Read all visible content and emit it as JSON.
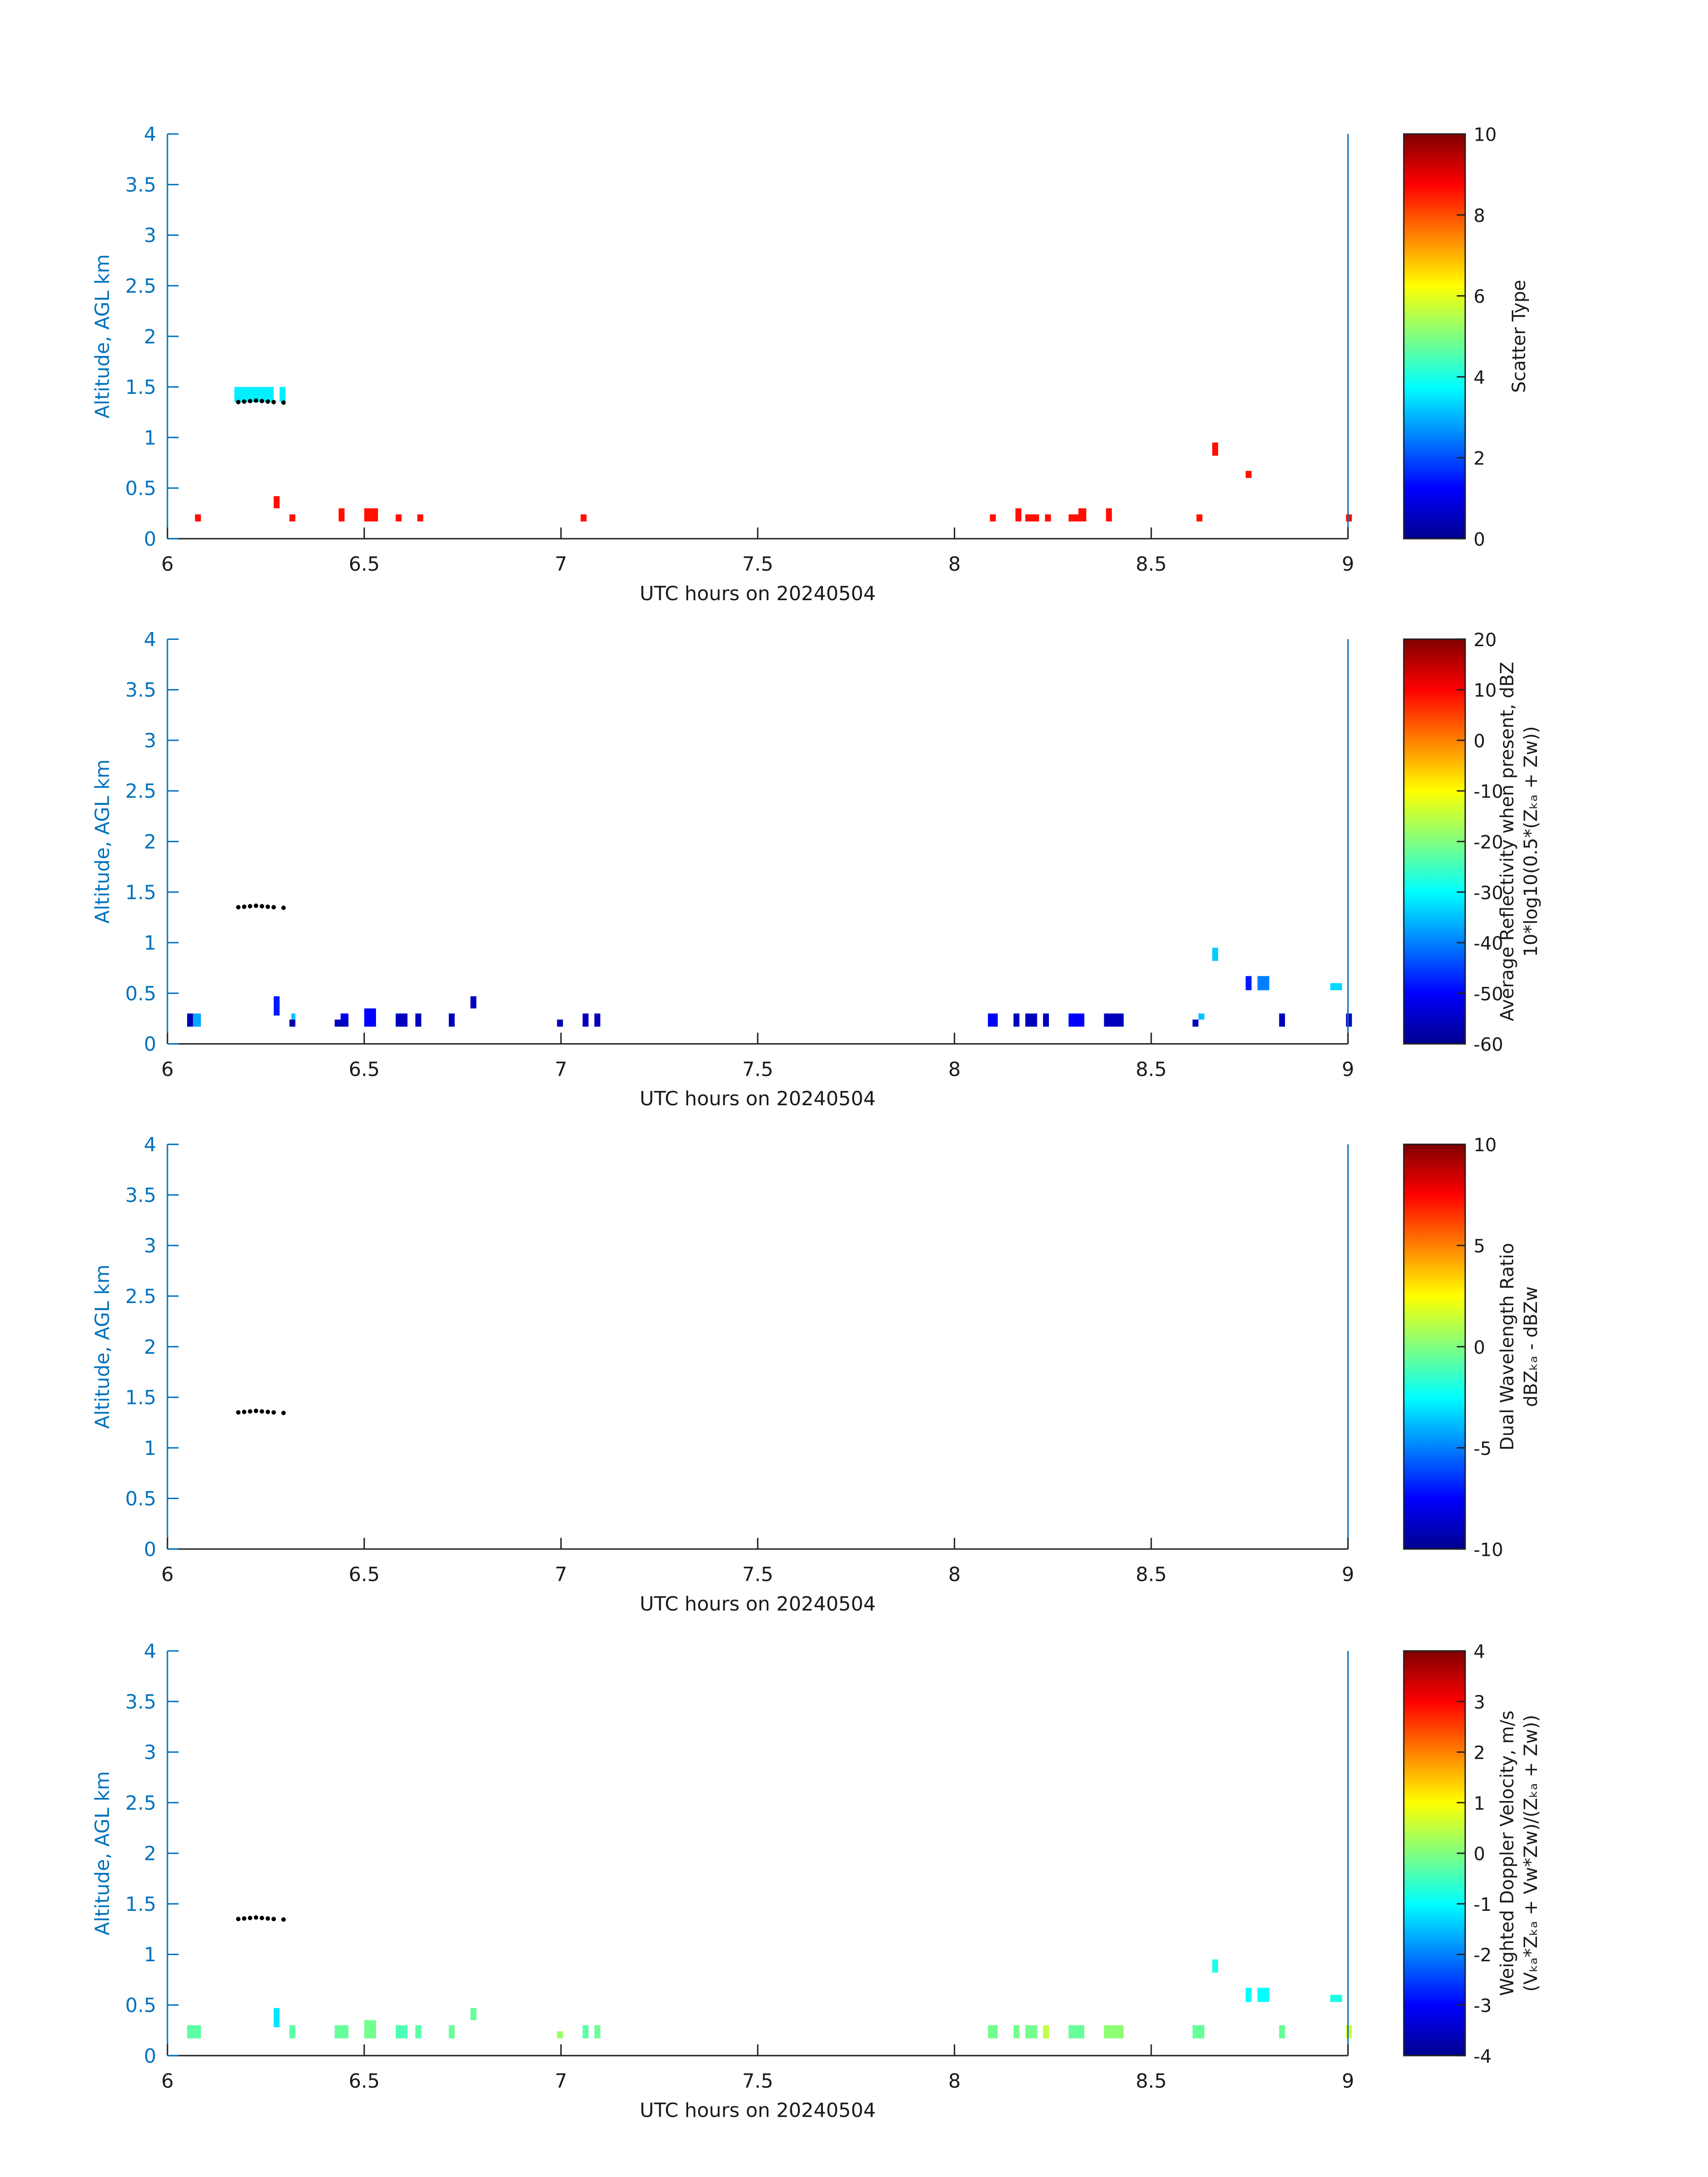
{
  "colors": {
    "axis_blue": "#0072BD",
    "tick_text": "#1a1a1a",
    "jet": [
      "#00008F",
      "#0000FF",
      "#0080FF",
      "#00FFFF",
      "#80FF80",
      "#FFFF00",
      "#FF8000",
      "#FF0000",
      "#800000"
    ]
  },
  "chart_data": [
    {
      "type": "heatmap",
      "xlabel": "UTC hours on 20240504",
      "ylabel": "Altitude, AGL km",
      "xlim": [
        6,
        9
      ],
      "ylim": [
        0,
        4
      ],
      "xticks": [
        "6",
        "6.5",
        "7",
        "7.5",
        "8",
        "8.5",
        "9"
      ],
      "yticks": [
        "0",
        "0.5",
        "1",
        "1.5",
        "2",
        "2.5",
        "3",
        "3.5",
        "4"
      ],
      "colorbar": {
        "label_lines": [
          "Scatter Type"
        ],
        "range": [
          0,
          10
        ],
        "ticks": [
          "0",
          "2",
          "4",
          "6",
          "8",
          "10"
        ]
      },
      "dots": [
        [
          6.18,
          1.35
        ],
        [
          6.195,
          1.355
        ],
        [
          6.21,
          1.36
        ],
        [
          6.225,
          1.365
        ],
        [
          6.24,
          1.36
        ],
        [
          6.255,
          1.355
        ],
        [
          6.27,
          1.35
        ],
        [
          6.295,
          1.345
        ]
      ],
      "cells": [
        [
          6.17,
          6.27,
          1.35,
          1.5,
          3.6
        ],
        [
          6.285,
          6.3,
          1.35,
          1.5,
          3.6
        ],
        [
          6.07,
          6.085,
          0.17,
          0.24,
          8.6
        ],
        [
          6.27,
          6.285,
          0.3,
          0.42,
          8.6
        ],
        [
          6.31,
          6.325,
          0.17,
          0.24,
          8.6
        ],
        [
          6.435,
          6.45,
          0.17,
          0.3,
          8.6
        ],
        [
          6.5,
          6.535,
          0.17,
          0.3,
          8.6
        ],
        [
          6.58,
          6.595,
          0.17,
          0.24,
          8.6
        ],
        [
          6.635,
          6.65,
          0.17,
          0.24,
          8.6
        ],
        [
          7.05,
          7.065,
          0.17,
          0.24,
          8.6
        ],
        [
          8.09,
          8.105,
          0.17,
          0.24,
          8.6
        ],
        [
          8.155,
          8.17,
          0.17,
          0.3,
          8.6
        ],
        [
          8.18,
          8.215,
          0.17,
          0.24,
          8.6
        ],
        [
          8.23,
          8.245,
          0.17,
          0.24,
          8.6
        ],
        [
          8.29,
          8.32,
          0.17,
          0.24,
          8.6
        ],
        [
          8.315,
          8.335,
          0.17,
          0.3,
          8.6
        ],
        [
          8.385,
          8.4,
          0.17,
          0.3,
          8.6
        ],
        [
          8.615,
          8.63,
          0.17,
          0.24,
          8.6
        ],
        [
          8.655,
          8.67,
          0.82,
          0.95,
          8.6
        ],
        [
          8.74,
          8.755,
          0.6,
          0.67,
          8.6
        ],
        [
          8.995,
          9.01,
          0.17,
          0.24,
          8.6
        ]
      ]
    },
    {
      "type": "heatmap",
      "xlabel": "UTC hours on 20240504",
      "ylabel": "Altitude, AGL km",
      "xlim": [
        6,
        9
      ],
      "ylim": [
        0,
        4
      ],
      "xticks": [
        "6",
        "6.5",
        "7",
        "7.5",
        "8",
        "8.5",
        "9"
      ],
      "yticks": [
        "0",
        "0.5",
        "1",
        "1.5",
        "2",
        "2.5",
        "3",
        "3.5",
        "4"
      ],
      "colorbar": {
        "label_lines": [
          "Average Reflectivity when present, dBZ",
          "10*log10(0.5*(Zₖₐ + Zᴡ))"
        ],
        "range": [
          -60,
          20
        ],
        "ticks": [
          "-60",
          "-50",
          "-40",
          "-30",
          "-20",
          "-10",
          "0",
          "10",
          "20"
        ]
      },
      "dots": [
        [
          6.18,
          1.35
        ],
        [
          6.195,
          1.355
        ],
        [
          6.21,
          1.36
        ],
        [
          6.225,
          1.365
        ],
        [
          6.24,
          1.36
        ],
        [
          6.255,
          1.355
        ],
        [
          6.27,
          1.35
        ],
        [
          6.295,
          1.345
        ]
      ],
      "cells": [
        [
          6.05,
          6.065,
          0.17,
          0.3,
          -57
        ],
        [
          6.065,
          6.085,
          0.17,
          0.3,
          -37
        ],
        [
          6.27,
          6.285,
          0.28,
          0.47,
          -48
        ],
        [
          6.31,
          6.325,
          0.17,
          0.24,
          -57
        ],
        [
          6.315,
          6.325,
          0.24,
          0.3,
          -35
        ],
        [
          6.425,
          6.46,
          0.17,
          0.24,
          -56
        ],
        [
          6.44,
          6.46,
          0.24,
          0.3,
          -52
        ],
        [
          6.5,
          6.53,
          0.17,
          0.35,
          -50
        ],
        [
          6.58,
          6.61,
          0.17,
          0.3,
          -56
        ],
        [
          6.63,
          6.645,
          0.17,
          0.3,
          -56
        ],
        [
          6.715,
          6.73,
          0.17,
          0.3,
          -56
        ],
        [
          6.77,
          6.785,
          0.35,
          0.47,
          -56
        ],
        [
          6.99,
          7.005,
          0.17,
          0.24,
          -57
        ],
        [
          7.055,
          7.07,
          0.17,
          0.3,
          -56
        ],
        [
          7.085,
          7.1,
          0.17,
          0.3,
          -56
        ],
        [
          8.085,
          8.11,
          0.17,
          0.3,
          -50
        ],
        [
          8.15,
          8.165,
          0.17,
          0.3,
          -56
        ],
        [
          8.18,
          8.21,
          0.17,
          0.3,
          -56
        ],
        [
          8.225,
          8.24,
          0.17,
          0.3,
          -56
        ],
        [
          8.29,
          8.33,
          0.17,
          0.3,
          -50
        ],
        [
          8.38,
          8.43,
          0.17,
          0.3,
          -56
        ],
        [
          8.605,
          8.62,
          0.17,
          0.24,
          -56
        ],
        [
          8.62,
          8.635,
          0.24,
          0.3,
          -35
        ],
        [
          8.655,
          8.67,
          0.82,
          0.95,
          -34
        ],
        [
          8.74,
          8.755,
          0.53,
          0.67,
          -48
        ],
        [
          8.77,
          8.8,
          0.53,
          0.67,
          -40
        ],
        [
          8.825,
          8.84,
          0.17,
          0.3,
          -56
        ],
        [
          8.955,
          8.985,
          0.53,
          0.6,
          -33
        ],
        [
          8.995,
          9.01,
          0.17,
          0.3,
          -56
        ]
      ]
    },
    {
      "type": "heatmap",
      "xlabel": "UTC hours on 20240504",
      "ylabel": "Altitude, AGL km",
      "xlim": [
        6,
        9
      ],
      "ylim": [
        0,
        4
      ],
      "xticks": [
        "6",
        "6.5",
        "7",
        "7.5",
        "8",
        "8.5",
        "9"
      ],
      "yticks": [
        "0",
        "0.5",
        "1",
        "1.5",
        "2",
        "2.5",
        "3",
        "3.5",
        "4"
      ],
      "colorbar": {
        "label_lines": [
          "Dual Wavelength Ratio",
          "dBZₖₐ - dBZᴡ"
        ],
        "range": [
          -10,
          10
        ],
        "ticks": [
          "-10",
          "-5",
          "0",
          "5",
          "10"
        ]
      },
      "dots": [
        [
          6.18,
          1.35
        ],
        [
          6.195,
          1.355
        ],
        [
          6.21,
          1.36
        ],
        [
          6.225,
          1.365
        ],
        [
          6.24,
          1.36
        ],
        [
          6.255,
          1.355
        ],
        [
          6.27,
          1.35
        ],
        [
          6.295,
          1.345
        ]
      ],
      "cells": []
    },
    {
      "type": "heatmap",
      "xlabel": "UTC hours on 20240504",
      "ylabel": "Altitude, AGL km",
      "xlim": [
        6,
        9
      ],
      "ylim": [
        0,
        4
      ],
      "xticks": [
        "6",
        "6.5",
        "7",
        "7.5",
        "8",
        "8.5",
        "9"
      ],
      "yticks": [
        "0",
        "0.5",
        "1",
        "1.5",
        "2",
        "2.5",
        "3",
        "3.5",
        "4"
      ],
      "colorbar": {
        "label_lines": [
          "Weighted Doppler Velocity, m/s",
          "(Vₖₐ*Zₖₐ + Vᴡ*Zᴡ)/(Zₖₐ + Zᴡ))"
        ],
        "range": [
          -4,
          4
        ],
        "ticks": [
          "-4",
          "-3",
          "-2",
          "-1",
          "0",
          "1",
          "2",
          "3",
          "4"
        ]
      },
      "dots": [
        [
          6.18,
          1.35
        ],
        [
          6.195,
          1.355
        ],
        [
          6.21,
          1.36
        ],
        [
          6.225,
          1.365
        ],
        [
          6.24,
          1.36
        ],
        [
          6.255,
          1.355
        ],
        [
          6.27,
          1.35
        ],
        [
          6.295,
          1.345
        ]
      ],
      "cells": [
        [
          6.05,
          6.085,
          0.17,
          0.3,
          -0.3
        ],
        [
          6.27,
          6.285,
          0.28,
          0.47,
          -1.2
        ],
        [
          6.31,
          6.325,
          0.17,
          0.3,
          -0.3
        ],
        [
          6.425,
          6.46,
          0.17,
          0.3,
          -0.2
        ],
        [
          6.5,
          6.53,
          0.17,
          0.35,
          -0.1
        ],
        [
          6.58,
          6.61,
          0.17,
          0.3,
          -0.4
        ],
        [
          6.63,
          6.645,
          0.17,
          0.3,
          -0.3
        ],
        [
          6.715,
          6.73,
          0.17,
          0.3,
          -0.2
        ],
        [
          6.77,
          6.785,
          0.35,
          0.47,
          -0.2
        ],
        [
          6.99,
          7.005,
          0.17,
          0.24,
          0.2
        ],
        [
          7.055,
          7.07,
          0.17,
          0.3,
          -0.3
        ],
        [
          7.085,
          7.1,
          0.17,
          0.3,
          -0.2
        ],
        [
          8.085,
          8.11,
          0.17,
          0.3,
          -0.1
        ],
        [
          8.15,
          8.165,
          0.17,
          0.3,
          -0.1
        ],
        [
          8.18,
          8.21,
          0.17,
          0.3,
          -0.1
        ],
        [
          8.225,
          8.24,
          0.17,
          0.3,
          0.5
        ],
        [
          8.29,
          8.33,
          0.17,
          0.3,
          -0.2
        ],
        [
          8.38,
          8.43,
          0.17,
          0.3,
          0.1
        ],
        [
          8.605,
          8.635,
          0.17,
          0.3,
          -0.2
        ],
        [
          8.655,
          8.67,
          0.82,
          0.95,
          -0.8
        ],
        [
          8.74,
          8.755,
          0.53,
          0.67,
          -1.0
        ],
        [
          8.77,
          8.8,
          0.53,
          0.67,
          -1.0
        ],
        [
          8.825,
          8.84,
          0.17,
          0.3,
          -0.2
        ],
        [
          8.955,
          8.985,
          0.53,
          0.6,
          -0.8
        ],
        [
          8.995,
          9.01,
          0.17,
          0.3,
          0.6
        ]
      ]
    }
  ]
}
